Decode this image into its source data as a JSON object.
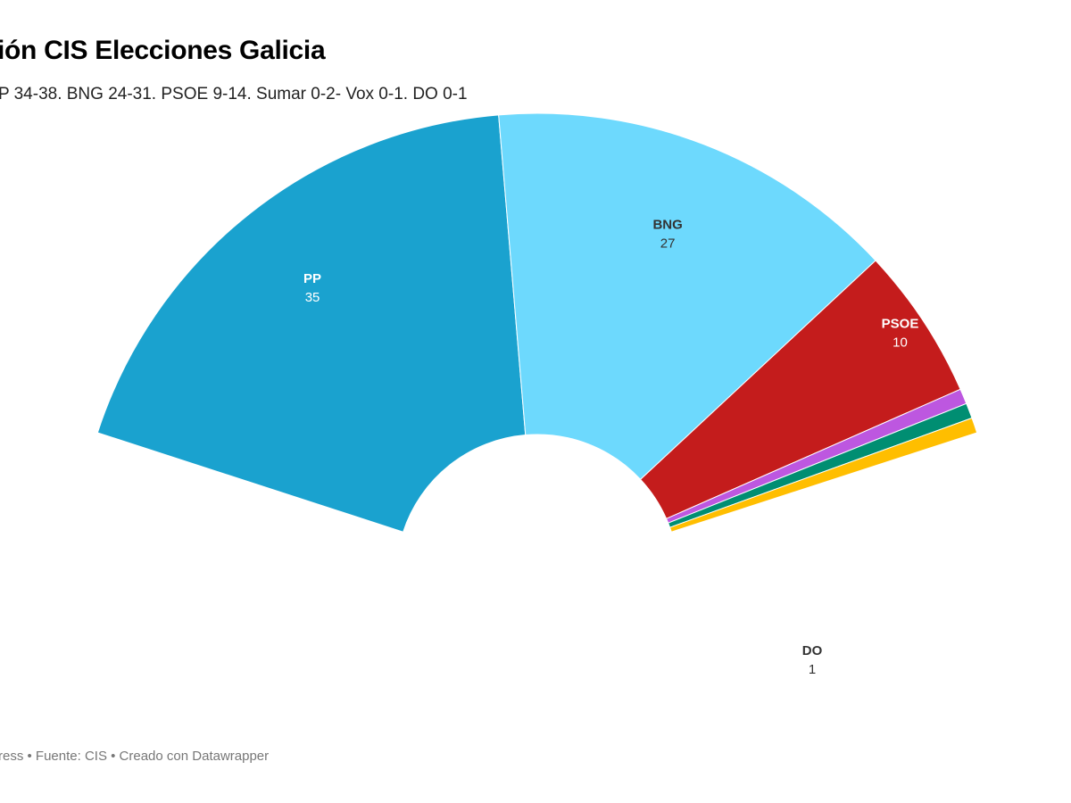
{
  "header": {
    "title": "ión CIS Elecciones Galicia",
    "subtitle": "P 34-38. BNG 24-31. PSOE 9-14. Sumar 0-2- Vox 0-1. DO 0-1"
  },
  "footer": {
    "text": "ress • Fuente: CIS • Creado con Datawrapper"
  },
  "chart_data": {
    "type": "pie",
    "variant": "half-donut (parliament)",
    "title": "ión CIS Elecciones Galicia",
    "subtitle": "P 34-38. BNG 24-31. PSOE 9-14. Sumar 0-2- Vox 0-1. DO 0-1",
    "series": [
      {
        "name": "PP",
        "value": 35,
        "color": "#1aa2cf",
        "label_color": "#ffffff",
        "label_value": "35"
      },
      {
        "name": "BNG",
        "value": 27,
        "color": "#6dd9fd",
        "label_color": "#333333",
        "label_value": "27"
      },
      {
        "name": "PSOE",
        "value": 10,
        "color": "#c41c1c",
        "label_color": "#ffffff",
        "label_value": "10"
      },
      {
        "name": "Sumar",
        "value": 1,
        "color": "#bd57e0",
        "label_color": "#ffffff",
        "label_value": "1"
      },
      {
        "name": "Vox",
        "value": 1,
        "color": "#008e72",
        "label_color": "#ffffff",
        "label_value": "1"
      },
      {
        "name": "DO",
        "value": 1,
        "color": "#ffbe00",
        "label_color": "#333333",
        "label_value": "1"
      }
    ]
  }
}
